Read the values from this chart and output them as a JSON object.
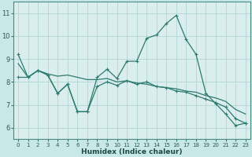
{
  "xlabel": "Humidex (Indice chaleur)",
  "bg_color": "#c8e8e8",
  "plot_bg_color": "#daeeed",
  "grid_color": "#b8d8d8",
  "line_color": "#2d7a6e",
  "xlim": [
    -0.5,
    23.5
  ],
  "ylim": [
    5.5,
    11.5
  ],
  "yticks": [
    6,
    7,
    8,
    9,
    10,
    11
  ],
  "xticks": [
    0,
    1,
    2,
    3,
    4,
    5,
    6,
    7,
    8,
    9,
    10,
    11,
    12,
    13,
    14,
    15,
    16,
    17,
    18,
    19,
    20,
    21,
    22,
    23
  ],
  "line1_x": [
    0,
    1,
    2,
    3,
    4,
    5,
    6,
    7,
    8,
    9,
    10,
    11,
    12,
    13,
    14,
    15,
    16,
    17,
    18,
    19,
    20,
    21,
    22,
    23
  ],
  "line1_y": [
    9.2,
    8.2,
    8.5,
    8.3,
    7.5,
    7.9,
    6.7,
    6.7,
    8.2,
    8.55,
    8.15,
    8.9,
    8.9,
    9.9,
    10.05,
    10.55,
    10.9,
    9.85,
    9.2,
    7.5,
    7.05,
    6.6,
    6.1,
    6.2
  ],
  "line2_x": [
    0,
    1,
    2,
    3,
    4,
    5,
    6,
    7,
    8,
    9,
    10,
    11,
    12,
    13,
    14,
    15,
    16,
    17,
    18,
    19,
    20,
    21,
    22,
    23
  ],
  "line2_y": [
    8.8,
    8.2,
    8.5,
    8.35,
    8.25,
    8.3,
    8.2,
    8.1,
    8.1,
    8.15,
    8.0,
    8.05,
    7.95,
    7.9,
    7.8,
    7.75,
    7.7,
    7.6,
    7.55,
    7.4,
    7.3,
    7.15,
    6.8,
    6.6
  ],
  "line3_x": [
    0,
    1,
    2,
    3,
    4,
    5,
    6,
    7,
    8,
    9,
    10,
    11,
    12,
    13,
    14,
    15,
    16,
    17,
    18,
    19,
    20,
    21,
    22,
    23
  ],
  "line3_y": [
    8.2,
    8.2,
    8.5,
    8.3,
    7.5,
    7.9,
    6.7,
    6.7,
    7.8,
    8.0,
    7.85,
    8.05,
    7.9,
    8.0,
    7.8,
    7.75,
    7.6,
    7.55,
    7.4,
    7.25,
    7.1,
    6.9,
    6.4,
    6.2
  ]
}
